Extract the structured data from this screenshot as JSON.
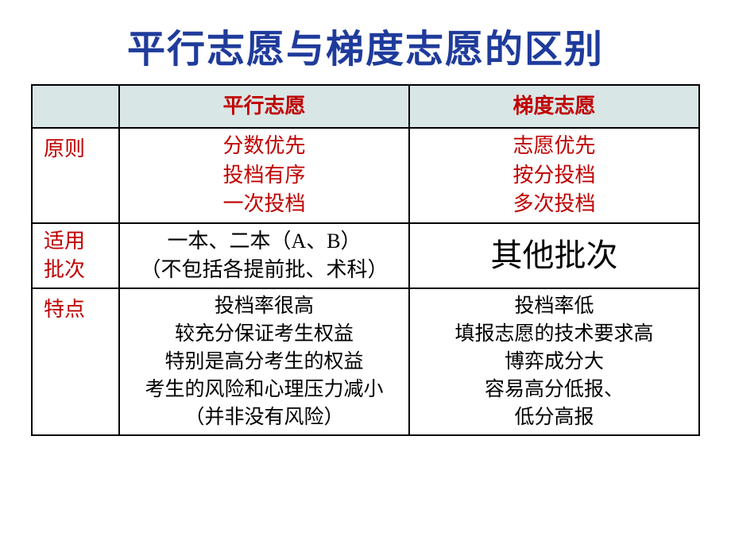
{
  "title": {
    "text": "平行志愿与梯度志愿的区别",
    "color": "#1f3b9b",
    "fontsize": 48
  },
  "table": {
    "header": {
      "blank": "",
      "colA": "平行志愿",
      "colB": "梯度志愿",
      "bg": "#d9e6e6",
      "text_color": "#c00000"
    },
    "rows": [
      {
        "label": "原则",
        "label_color": "#c00000",
        "a": "分数优先\n投档有序\n一次投档",
        "a_color": "#c00000",
        "b": "志愿优先\n按分投档\n多次投档",
        "b_color": "#c00000"
      },
      {
        "label": "适用\n批次",
        "label_color": "#c00000",
        "a": "一本、二本（A、B）\n（不包括各提前批、术科）",
        "a_color": "#000000",
        "b": "其他批次",
        "b_color": "#000000",
        "b_big": true
      },
      {
        "label": "特点",
        "label_color": "#c00000",
        "a": "投档率很高\n较充分保证考生权益\n特别是高分考生的权益\n考生的风险和心理压力减小\n（并非没有风险）",
        "a_color": "#000000",
        "b": "投档率低\n填报志愿的技术要求高\n博弈成分大\n容易高分低报、\n低分高报",
        "b_color": "#000000"
      }
    ]
  },
  "style": {
    "border_color": "#000000",
    "background": "#ffffff",
    "font_family": "SimSun"
  }
}
